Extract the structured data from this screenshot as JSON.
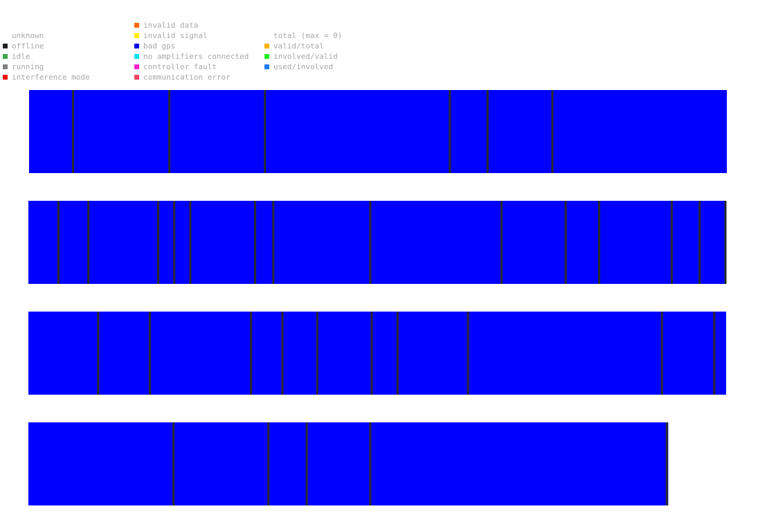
{
  "legend": {
    "status": [
      {
        "label": "unknown",
        "color": ""
      },
      {
        "label": "offline",
        "color": "#222222"
      },
      {
        "label": "idle",
        "color": "#3fa34d"
      },
      {
        "label": "running",
        "color": "#808080"
      },
      {
        "label": "interference mode",
        "color": "#ee1111"
      }
    ],
    "errors": [
      {
        "label": "invalid data",
        "color": "#ff6600"
      },
      {
        "label": "invalid signal",
        "color": "#ffee00"
      },
      {
        "label": "bad gps",
        "color": "#0000ee"
      },
      {
        "label": "no amplifiers connected",
        "color": "#00e5ee"
      },
      {
        "label": "controller fault",
        "color": "#ff22cc"
      },
      {
        "label": "communication error",
        "color": "#ee4466"
      }
    ],
    "totals_header": "total (max = 0)",
    "totals": [
      {
        "label": "valid/total",
        "color": "#ffb000"
      },
      {
        "label": "involved/valid",
        "color": "#22ee22"
      },
      {
        "label": "used/involved",
        "color": "#2277ee"
      }
    ]
  },
  "chart_data": {
    "type": "timeline",
    "fill_color": "#0000ff",
    "separator_color": "#2a2a2a",
    "rows": [
      {
        "end": 1.0,
        "separators": [
          0.063,
          0.201,
          0.338,
          0.603,
          0.657,
          0.75
        ]
      },
      {
        "end": 1.0,
        "separators": [
          0.043,
          0.086,
          0.186,
          0.209,
          0.232,
          0.325,
          0.351,
          0.49,
          0.678,
          0.77,
          0.818,
          0.922,
          0.962,
          0.999
        ]
      },
      {
        "end": 1.0,
        "separators": [
          0.1,
          0.174,
          0.319,
          0.364,
          0.414,
          0.492,
          0.529,
          0.63,
          0.908,
          0.983
        ]
      },
      {
        "end": 0.917,
        "separators": [
          0.208,
          0.344,
          0.399,
          0.49,
          0.915
        ]
      }
    ]
  }
}
